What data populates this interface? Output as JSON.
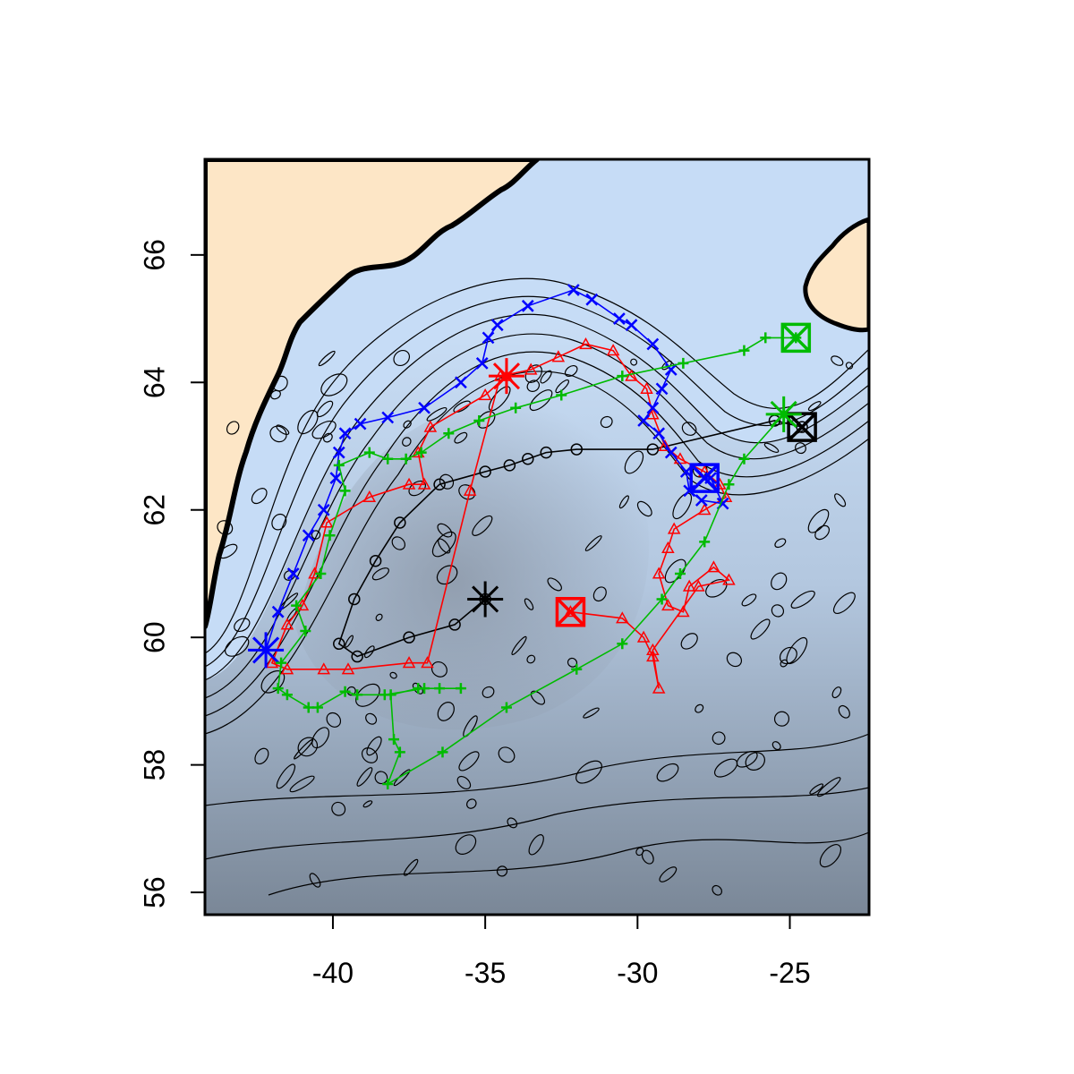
{
  "axes": {
    "x_ticks": [
      {
        "value": -40,
        "label": "-40"
      },
      {
        "value": -35,
        "label": "-35"
      },
      {
        "value": -30,
        "label": "-30"
      },
      {
        "value": -25,
        "label": "-25"
      }
    ],
    "y_ticks": [
      {
        "value": 56,
        "label": "56"
      },
      {
        "value": 58,
        "label": "58"
      },
      {
        "value": 60,
        "label": "60"
      },
      {
        "value": 62,
        "label": "62"
      },
      {
        "value": 64,
        "label": "64"
      },
      {
        "value": 66,
        "label": "66"
      }
    ],
    "xlim": [
      -44.2,
      -22.4
    ],
    "ylim": [
      55.65,
      67.5
    ]
  },
  "colors": {
    "land": "#fde6c6",
    "shallow": "#c6dcf6",
    "deep": "#7d8a9a",
    "coast": "#000000",
    "contour": "#000000",
    "track_black": "#000000",
    "track_red": "#ff0000",
    "track_blue": "#0000ff",
    "track_green": "#00bb00"
  },
  "tracks": [
    {
      "color": "#000000",
      "marker": "circle",
      "start": [
        -35.0,
        60.6
      ],
      "end": [
        -24.6,
        63.3
      ],
      "points": [
        [
          -35.0,
          60.6
        ],
        [
          -36.0,
          60.2
        ],
        [
          -37.5,
          60.0
        ],
        [
          -39.2,
          59.7
        ],
        [
          -39.8,
          59.9
        ],
        [
          -39.3,
          60.6
        ],
        [
          -38.6,
          61.2
        ],
        [
          -37.8,
          61.8
        ],
        [
          -36.5,
          62.4
        ],
        [
          -35.0,
          62.6
        ],
        [
          -34.2,
          62.7
        ],
        [
          -33.6,
          62.8
        ],
        [
          -33.0,
          62.9
        ],
        [
          -32.0,
          62.95
        ],
        [
          -29.5,
          62.95
        ],
        [
          -25.5,
          63.4
        ],
        [
          -24.6,
          63.3
        ]
      ]
    },
    {
      "color": "#ff0000",
      "marker": "triangle",
      "start": [
        -34.3,
        64.1
      ],
      "end": [
        -32.2,
        60.4
      ],
      "points": [
        [
          -34.3,
          64.1
        ],
        [
          -35.0,
          63.8
        ],
        [
          -36.8,
          63.3
        ],
        [
          -37.2,
          62.9
        ],
        [
          -37.0,
          62.4
        ],
        [
          -37.5,
          62.4
        ],
        [
          -38.8,
          62.2
        ],
        [
          -40.2,
          61.8
        ],
        [
          -40.6,
          61.0
        ],
        [
          -41.0,
          60.5
        ],
        [
          -41.5,
          60.2
        ],
        [
          -42.0,
          59.6
        ],
        [
          -41.5,
          59.5
        ],
        [
          -40.3,
          59.5
        ],
        [
          -39.5,
          59.5
        ],
        [
          -37.5,
          59.6
        ],
        [
          -36.9,
          59.6
        ],
        [
          -35.5,
          62.3
        ],
        [
          -34.5,
          64.1
        ],
        [
          -33.5,
          64.2
        ],
        [
          -32.6,
          64.4
        ],
        [
          -31.7,
          64.6
        ],
        [
          -30.8,
          64.5
        ],
        [
          -30.2,
          64.1
        ],
        [
          -29.7,
          63.9
        ],
        [
          -29.5,
          63.5
        ],
        [
          -29.1,
          63.0
        ],
        [
          -28.6,
          62.8
        ],
        [
          -27.8,
          62.6
        ],
        [
          -27.3,
          62.4
        ],
        [
          -27.1,
          62.2
        ],
        [
          -27.8,
          62.0
        ],
        [
          -28.8,
          61.7
        ],
        [
          -29.0,
          61.4
        ],
        [
          -29.3,
          61.0
        ],
        [
          -29.0,
          60.5
        ],
        [
          -28.5,
          60.4
        ],
        [
          -28.3,
          60.8
        ],
        [
          -27.5,
          61.1
        ],
        [
          -27.0,
          60.9
        ],
        [
          -28.0,
          60.8
        ],
        [
          -29.5,
          59.8
        ],
        [
          -29.3,
          59.2
        ],
        [
          -29.5,
          59.7
        ],
        [
          -29.8,
          60.0
        ],
        [
          -30.5,
          60.3
        ],
        [
          -32.2,
          60.4
        ]
      ]
    },
    {
      "color": "#0000ff",
      "marker": "x",
      "start": [
        -42.2,
        59.8
      ],
      "end": [
        -27.8,
        62.5
      ],
      "points": [
        [
          -42.2,
          59.8
        ],
        [
          -41.8,
          60.4
        ],
        [
          -41.3,
          61.0
        ],
        [
          -40.8,
          61.6
        ],
        [
          -40.3,
          62.0
        ],
        [
          -39.9,
          62.5
        ],
        [
          -39.8,
          62.9
        ],
        [
          -39.6,
          63.2
        ],
        [
          -39.1,
          63.35
        ],
        [
          -38.2,
          63.45
        ],
        [
          -37.0,
          63.6
        ],
        [
          -35.8,
          64.0
        ],
        [
          -35.1,
          64.3
        ],
        [
          -34.9,
          64.7
        ],
        [
          -34.6,
          64.9
        ],
        [
          -33.6,
          65.2
        ],
        [
          -32.1,
          65.45
        ],
        [
          -31.5,
          65.3
        ],
        [
          -30.6,
          65.0
        ],
        [
          -30.2,
          64.9
        ],
        [
          -29.5,
          64.6
        ],
        [
          -28.9,
          64.2
        ],
        [
          -29.2,
          63.9
        ],
        [
          -29.5,
          63.6
        ],
        [
          -29.8,
          63.4
        ],
        [
          -29.3,
          63.2
        ],
        [
          -28.9,
          62.9
        ],
        [
          -28.4,
          62.6
        ],
        [
          -28.3,
          62.3
        ],
        [
          -27.9,
          62.15
        ],
        [
          -27.2,
          62.1
        ],
        [
          -27.6,
          62.5
        ],
        [
          -27.8,
          62.5
        ]
      ]
    },
    {
      "color": "#00bb00",
      "marker": "plus",
      "start": [
        -25.2,
        63.5
      ],
      "end": [
        -24.8,
        64.7
      ],
      "points": [
        [
          -25.2,
          63.5
        ],
        [
          -26.5,
          62.8
        ],
        [
          -27.0,
          62.4
        ],
        [
          -27.8,
          61.5
        ],
        [
          -28.6,
          61.0
        ],
        [
          -29.2,
          60.6
        ],
        [
          -30.5,
          59.9
        ],
        [
          -32.0,
          59.5
        ],
        [
          -34.3,
          58.9
        ],
        [
          -36.4,
          58.2
        ],
        [
          -38.2,
          57.7
        ],
        [
          -37.8,
          58.2
        ],
        [
          -38.0,
          58.4
        ],
        [
          -38.1,
          59.1
        ],
        [
          -37.2,
          59.2
        ],
        [
          -36.5,
          59.2
        ],
        [
          -35.8,
          59.2
        ],
        [
          -37.0,
          59.2
        ],
        [
          -38.3,
          59.1
        ],
        [
          -39.2,
          59.1
        ],
        [
          -39.6,
          59.15
        ],
        [
          -40.5,
          58.9
        ],
        [
          -40.8,
          58.9
        ],
        [
          -41.5,
          59.1
        ],
        [
          -41.8,
          59.2
        ],
        [
          -41.7,
          59.6
        ],
        [
          -40.9,
          60.1
        ],
        [
          -41.2,
          60.5
        ],
        [
          -40.4,
          61.0
        ],
        [
          -40.1,
          61.6
        ],
        [
          -39.6,
          62.3
        ],
        [
          -39.8,
          62.7
        ],
        [
          -38.8,
          62.9
        ],
        [
          -38.2,
          62.8
        ],
        [
          -37.6,
          62.8
        ],
        [
          -37.1,
          62.9
        ],
        [
          -36.2,
          63.2
        ],
        [
          -35.2,
          63.4
        ],
        [
          -34.0,
          63.6
        ],
        [
          -32.5,
          63.8
        ],
        [
          -30.5,
          64.1
        ],
        [
          -28.5,
          64.3
        ],
        [
          -26.5,
          64.5
        ],
        [
          -25.8,
          64.7
        ],
        [
          -24.8,
          64.7
        ]
      ]
    }
  ]
}
